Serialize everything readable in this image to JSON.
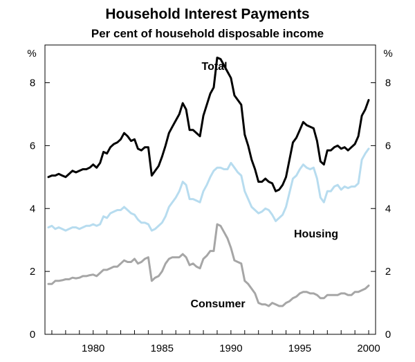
{
  "chart_data": {
    "type": "line",
    "title": "Household Interest Payments",
    "subtitle": "Per cent of household disposable income",
    "left_unit": "%",
    "right_unit": "%",
    "xlim": [
      1976.5,
      2000.5
    ],
    "ylim": [
      0,
      9.2
    ],
    "x_ticks": [
      1980,
      1985,
      1990,
      1995,
      2000
    ],
    "x_tick_labels": [
      "1980",
      "1985",
      "1990",
      "1995",
      "2000"
    ],
    "y_ticks": [
      0,
      2,
      4,
      6,
      8
    ],
    "y_tick_labels": [
      "0",
      "2",
      "4",
      "6",
      "8"
    ],
    "grid": false,
    "series": [
      {
        "name": "Total",
        "color": "#000000",
        "points": [
          [
            1976.75,
            5.0
          ],
          [
            1977.0,
            5.05
          ],
          [
            1977.25,
            5.05
          ],
          [
            1977.5,
            5.1
          ],
          [
            1977.75,
            5.05
          ],
          [
            1978.0,
            5.0
          ],
          [
            1978.25,
            5.1
          ],
          [
            1978.5,
            5.2
          ],
          [
            1978.75,
            5.15
          ],
          [
            1979.0,
            5.2
          ],
          [
            1979.25,
            5.25
          ],
          [
            1979.5,
            5.25
          ],
          [
            1979.75,
            5.3
          ],
          [
            1980.0,
            5.4
          ],
          [
            1980.25,
            5.3
          ],
          [
            1980.5,
            5.45
          ],
          [
            1980.75,
            5.8
          ],
          [
            1981.0,
            5.75
          ],
          [
            1981.25,
            5.95
          ],
          [
            1981.5,
            6.05
          ],
          [
            1981.75,
            6.1
          ],
          [
            1982.0,
            6.2
          ],
          [
            1982.25,
            6.4
          ],
          [
            1982.5,
            6.3
          ],
          [
            1982.75,
            6.15
          ],
          [
            1983.0,
            6.2
          ],
          [
            1983.25,
            5.9
          ],
          [
            1983.5,
            5.85
          ],
          [
            1983.75,
            5.95
          ],
          [
            1984.0,
            5.95
          ],
          [
            1984.25,
            5.05
          ],
          [
            1984.5,
            5.2
          ],
          [
            1984.75,
            5.35
          ],
          [
            1985.0,
            5.65
          ],
          [
            1985.25,
            6.0
          ],
          [
            1985.5,
            6.4
          ],
          [
            1985.75,
            6.6
          ],
          [
            1986.0,
            6.8
          ],
          [
            1986.25,
            7.0
          ],
          [
            1986.5,
            7.35
          ],
          [
            1986.75,
            7.15
          ],
          [
            1987.0,
            6.5
          ],
          [
            1987.25,
            6.5
          ],
          [
            1987.5,
            6.4
          ],
          [
            1987.75,
            6.3
          ],
          [
            1988.0,
            6.95
          ],
          [
            1988.25,
            7.3
          ],
          [
            1988.5,
            7.65
          ],
          [
            1988.75,
            7.85
          ],
          [
            1989.0,
            8.8
          ],
          [
            1989.25,
            8.75
          ],
          [
            1989.5,
            8.55
          ],
          [
            1989.75,
            8.35
          ],
          [
            1990.0,
            8.15
          ],
          [
            1990.25,
            7.6
          ],
          [
            1990.5,
            7.45
          ],
          [
            1990.75,
            7.3
          ],
          [
            1991.0,
            6.35
          ],
          [
            1991.25,
            6.0
          ],
          [
            1991.5,
            5.55
          ],
          [
            1991.75,
            5.25
          ],
          [
            1992.0,
            4.85
          ],
          [
            1992.25,
            4.85
          ],
          [
            1992.5,
            4.95
          ],
          [
            1992.75,
            4.85
          ],
          [
            1993.0,
            4.8
          ],
          [
            1993.25,
            4.55
          ],
          [
            1993.5,
            4.6
          ],
          [
            1993.75,
            4.75
          ],
          [
            1994.0,
            5.0
          ],
          [
            1994.25,
            5.55
          ],
          [
            1994.5,
            6.1
          ],
          [
            1994.75,
            6.25
          ],
          [
            1995.0,
            6.5
          ],
          [
            1995.25,
            6.75
          ],
          [
            1995.5,
            6.65
          ],
          [
            1995.75,
            6.6
          ],
          [
            1996.0,
            6.55
          ],
          [
            1996.25,
            6.15
          ],
          [
            1996.5,
            5.5
          ],
          [
            1996.75,
            5.4
          ],
          [
            1997.0,
            5.85
          ],
          [
            1997.25,
            5.85
          ],
          [
            1997.5,
            5.95
          ],
          [
            1997.75,
            6.0
          ],
          [
            1998.0,
            5.9
          ],
          [
            1998.25,
            5.95
          ],
          [
            1998.5,
            5.85
          ],
          [
            1998.75,
            5.95
          ],
          [
            1999.0,
            6.05
          ],
          [
            1999.25,
            6.3
          ],
          [
            1999.5,
            6.95
          ],
          [
            1999.75,
            7.15
          ],
          [
            2000.0,
            7.45
          ]
        ]
      },
      {
        "name": "Housing",
        "color": "#b7dcef",
        "points": [
          [
            1976.75,
            3.4
          ],
          [
            1977.0,
            3.45
          ],
          [
            1977.25,
            3.35
          ],
          [
            1977.5,
            3.4
          ],
          [
            1977.75,
            3.35
          ],
          [
            1978.0,
            3.3
          ],
          [
            1978.25,
            3.35
          ],
          [
            1978.5,
            3.4
          ],
          [
            1978.75,
            3.4
          ],
          [
            1979.0,
            3.35
          ],
          [
            1979.25,
            3.4
          ],
          [
            1979.5,
            3.45
          ],
          [
            1979.75,
            3.45
          ],
          [
            1980.0,
            3.5
          ],
          [
            1980.25,
            3.45
          ],
          [
            1980.5,
            3.5
          ],
          [
            1980.75,
            3.75
          ],
          [
            1981.0,
            3.7
          ],
          [
            1981.25,
            3.85
          ],
          [
            1981.5,
            3.9
          ],
          [
            1981.75,
            3.95
          ],
          [
            1982.0,
            3.95
          ],
          [
            1982.25,
            4.05
          ],
          [
            1982.5,
            3.95
          ],
          [
            1982.75,
            3.85
          ],
          [
            1983.0,
            3.8
          ],
          [
            1983.25,
            3.65
          ],
          [
            1983.5,
            3.55
          ],
          [
            1983.75,
            3.55
          ],
          [
            1984.0,
            3.5
          ],
          [
            1984.25,
            3.3
          ],
          [
            1984.5,
            3.35
          ],
          [
            1984.75,
            3.45
          ],
          [
            1985.0,
            3.55
          ],
          [
            1985.25,
            3.75
          ],
          [
            1985.5,
            4.05
          ],
          [
            1985.75,
            4.2
          ],
          [
            1986.0,
            4.35
          ],
          [
            1986.25,
            4.55
          ],
          [
            1986.5,
            4.85
          ],
          [
            1986.75,
            4.75
          ],
          [
            1987.0,
            4.3
          ],
          [
            1987.25,
            4.3
          ],
          [
            1987.5,
            4.25
          ],
          [
            1987.75,
            4.2
          ],
          [
            1988.0,
            4.55
          ],
          [
            1988.25,
            4.75
          ],
          [
            1988.5,
            5.0
          ],
          [
            1988.75,
            5.2
          ],
          [
            1989.0,
            5.3
          ],
          [
            1989.25,
            5.3
          ],
          [
            1989.5,
            5.25
          ],
          [
            1989.75,
            5.25
          ],
          [
            1990.0,
            5.45
          ],
          [
            1990.25,
            5.3
          ],
          [
            1990.5,
            5.15
          ],
          [
            1990.75,
            5.05
          ],
          [
            1991.0,
            4.55
          ],
          [
            1991.25,
            4.3
          ],
          [
            1991.5,
            4.05
          ],
          [
            1991.75,
            3.95
          ],
          [
            1992.0,
            3.85
          ],
          [
            1992.25,
            3.9
          ],
          [
            1992.5,
            4.0
          ],
          [
            1992.75,
            3.95
          ],
          [
            1993.0,
            3.8
          ],
          [
            1993.25,
            3.6
          ],
          [
            1993.5,
            3.7
          ],
          [
            1993.75,
            3.8
          ],
          [
            1994.0,
            4.05
          ],
          [
            1994.25,
            4.5
          ],
          [
            1994.5,
            4.95
          ],
          [
            1994.75,
            5.05
          ],
          [
            1995.0,
            5.25
          ],
          [
            1995.25,
            5.4
          ],
          [
            1995.5,
            5.3
          ],
          [
            1995.75,
            5.25
          ],
          [
            1996.0,
            5.3
          ],
          [
            1996.25,
            4.95
          ],
          [
            1996.5,
            4.35
          ],
          [
            1996.75,
            4.2
          ],
          [
            1997.0,
            4.55
          ],
          [
            1997.25,
            4.55
          ],
          [
            1997.5,
            4.7
          ],
          [
            1997.75,
            4.75
          ],
          [
            1998.0,
            4.6
          ],
          [
            1998.25,
            4.7
          ],
          [
            1998.5,
            4.65
          ],
          [
            1998.75,
            4.7
          ],
          [
            1999.0,
            4.7
          ],
          [
            1999.25,
            4.8
          ],
          [
            1999.5,
            5.55
          ],
          [
            1999.75,
            5.75
          ],
          [
            2000.0,
            5.9
          ]
        ]
      },
      {
        "name": "Consumer",
        "color": "#a6a6a6",
        "points": [
          [
            1976.75,
            1.6
          ],
          [
            1977.0,
            1.6
          ],
          [
            1977.25,
            1.7
          ],
          [
            1977.5,
            1.7
          ],
          [
            1977.75,
            1.72
          ],
          [
            1978.0,
            1.75
          ],
          [
            1978.25,
            1.75
          ],
          [
            1978.5,
            1.8
          ],
          [
            1978.75,
            1.78
          ],
          [
            1979.0,
            1.8
          ],
          [
            1979.25,
            1.85
          ],
          [
            1979.5,
            1.85
          ],
          [
            1979.75,
            1.88
          ],
          [
            1980.0,
            1.9
          ],
          [
            1980.25,
            1.85
          ],
          [
            1980.5,
            1.95
          ],
          [
            1980.75,
            2.05
          ],
          [
            1981.0,
            2.05
          ],
          [
            1981.25,
            2.1
          ],
          [
            1981.5,
            2.15
          ],
          [
            1981.75,
            2.15
          ],
          [
            1982.0,
            2.25
          ],
          [
            1982.25,
            2.35
          ],
          [
            1982.5,
            2.3
          ],
          [
            1982.75,
            2.3
          ],
          [
            1983.0,
            2.4
          ],
          [
            1983.25,
            2.25
          ],
          [
            1983.5,
            2.3
          ],
          [
            1983.75,
            2.4
          ],
          [
            1984.0,
            2.45
          ],
          [
            1984.25,
            1.7
          ],
          [
            1984.5,
            1.8
          ],
          [
            1984.75,
            1.85
          ],
          [
            1985.0,
            2.0
          ],
          [
            1985.25,
            2.25
          ],
          [
            1985.5,
            2.4
          ],
          [
            1985.75,
            2.45
          ],
          [
            1986.0,
            2.45
          ],
          [
            1986.25,
            2.45
          ],
          [
            1986.5,
            2.55
          ],
          [
            1986.75,
            2.45
          ],
          [
            1987.0,
            2.2
          ],
          [
            1987.25,
            2.25
          ],
          [
            1987.5,
            2.15
          ],
          [
            1987.75,
            2.1
          ],
          [
            1988.0,
            2.4
          ],
          [
            1988.25,
            2.5
          ],
          [
            1988.5,
            2.65
          ],
          [
            1988.75,
            2.65
          ],
          [
            1989.0,
            3.5
          ],
          [
            1989.25,
            3.45
          ],
          [
            1989.5,
            3.25
          ],
          [
            1989.75,
            3.05
          ],
          [
            1990.0,
            2.75
          ],
          [
            1990.25,
            2.35
          ],
          [
            1990.5,
            2.3
          ],
          [
            1990.75,
            2.25
          ],
          [
            1991.0,
            1.7
          ],
          [
            1991.25,
            1.6
          ],
          [
            1991.5,
            1.45
          ],
          [
            1991.75,
            1.3
          ],
          [
            1992.0,
            1.0
          ],
          [
            1992.25,
            0.95
          ],
          [
            1992.5,
            0.95
          ],
          [
            1992.75,
            0.9
          ],
          [
            1993.0,
            1.0
          ],
          [
            1993.25,
            0.95
          ],
          [
            1993.5,
            0.9
          ],
          [
            1993.75,
            0.9
          ],
          [
            1994.0,
            1.0
          ],
          [
            1994.25,
            1.05
          ],
          [
            1994.5,
            1.15
          ],
          [
            1994.75,
            1.2
          ],
          [
            1995.0,
            1.3
          ],
          [
            1995.25,
            1.35
          ],
          [
            1995.5,
            1.35
          ],
          [
            1995.75,
            1.3
          ],
          [
            1996.0,
            1.3
          ],
          [
            1996.25,
            1.25
          ],
          [
            1996.5,
            1.15
          ],
          [
            1996.75,
            1.15
          ],
          [
            1997.0,
            1.25
          ],
          [
            1997.25,
            1.25
          ],
          [
            1997.5,
            1.25
          ],
          [
            1997.75,
            1.25
          ],
          [
            1998.0,
            1.3
          ],
          [
            1998.25,
            1.3
          ],
          [
            1998.5,
            1.25
          ],
          [
            1998.75,
            1.25
          ],
          [
            1999.0,
            1.35
          ],
          [
            1999.25,
            1.35
          ],
          [
            1999.5,
            1.4
          ],
          [
            1999.75,
            1.45
          ],
          [
            2000.0,
            1.55
          ]
        ]
      }
    ],
    "annotations": [
      {
        "text": "Total",
        "series": "Total"
      },
      {
        "text": "Housing",
        "series": "Housing"
      },
      {
        "text": "Consumer",
        "series": "Consumer"
      }
    ]
  }
}
